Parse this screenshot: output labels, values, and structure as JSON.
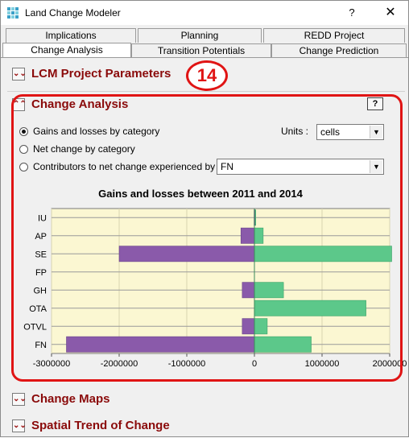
{
  "window": {
    "title": "Land Change Modeler",
    "help_label": "?",
    "close_label": "✕"
  },
  "tabs_back": [
    "Implications",
    "Planning",
    "REDD Project"
  ],
  "tabs_front": [
    "Change Analysis",
    "Transition Potentials",
    "Change Prediction"
  ],
  "active_tab": "Change Analysis",
  "sections": {
    "project": "LCM Project Parameters",
    "change_analysis": "Change Analysis",
    "change_maps": "Change Maps",
    "spatial_trend": "Spatial Trend of Change"
  },
  "annotation_number": "14",
  "help_button": "?",
  "options": [
    {
      "label": "Gains and losses by category",
      "selected": true
    },
    {
      "label": "Net change by category",
      "selected": false
    },
    {
      "label": "Contributors to net change experienced by :",
      "selected": false
    }
  ],
  "units": {
    "label": "Units :",
    "value": "cells"
  },
  "contributor_select": {
    "value": "FN"
  },
  "colors": {
    "gain": "#5cc88a",
    "loss": "#8a5aaa",
    "plot_bg": "#fbf7d2",
    "accent": "#8a0a0a",
    "annotation": "#e01414"
  },
  "chart_data": {
    "type": "bar",
    "orientation": "horizontal",
    "title": "Gains and losses between 2011 and 2014",
    "categories": [
      "IU",
      "AP",
      "SE",
      "FP",
      "GH",
      "OTA",
      "OTVL",
      "FN"
    ],
    "series": [
      {
        "values": [
          20000,
          130000,
          2030000,
          0,
          430000,
          1650000,
          190000,
          840000
        ]
      },
      {
        "values": [
          -5000,
          -200000,
          -2000000,
          0,
          -180000,
          0,
          -180000,
          -2780000
        ]
      }
    ],
    "xlim": [
      -3000000,
      2000000
    ],
    "xticks": [
      "-3000000",
      "-2000000",
      "-1000000",
      "0",
      "1000000",
      "2000000"
    ],
    "grid": true
  }
}
